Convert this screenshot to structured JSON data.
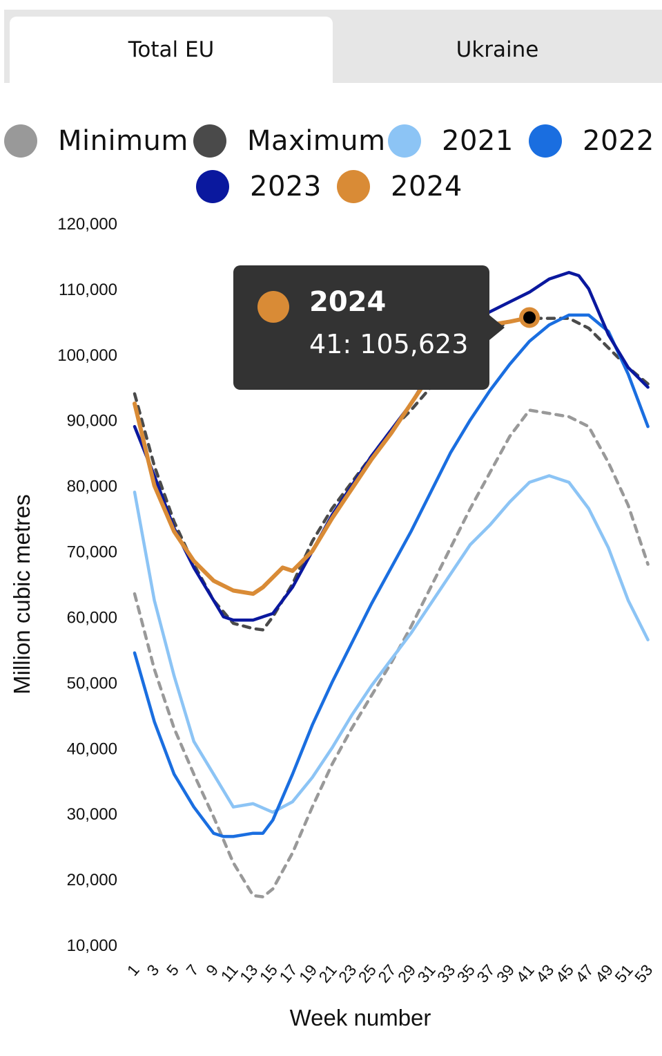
{
  "tabs": [
    {
      "label": "Total EU",
      "active": true
    },
    {
      "label": "Ukraine",
      "active": false
    }
  ],
  "tooltip": {
    "series": "2024",
    "value": "41: 105,623",
    "color": "#d98b36"
  },
  "chart_data": {
    "type": "line",
    "xlabel": "Week number",
    "ylabel": "Million cubic metres",
    "ylim": [
      10000,
      120000
    ],
    "yticks": [
      "120,000",
      "110,000",
      "100,000",
      "90,000",
      "80,000",
      "70,000",
      "60,000",
      "50,000",
      "40,000",
      "30,000",
      "20,000",
      "10,000"
    ],
    "xticks": [
      "1",
      "3",
      "5",
      "7",
      "9",
      "11",
      "13",
      "15",
      "17",
      "19",
      "21",
      "23",
      "25",
      "27",
      "29",
      "31",
      "33",
      "35",
      "37",
      "39",
      "41",
      "43",
      "45",
      "47",
      "49",
      "51",
      "53"
    ],
    "legend": {
      "placement": "top"
    },
    "series": [
      {
        "name": "Minimum",
        "color": "#999999",
        "dashed": true,
        "x": [
          1,
          3,
          5,
          7,
          9,
          11,
          13,
          14,
          15,
          17,
          19,
          21,
          23,
          25,
          27,
          29,
          31,
          33,
          35,
          37,
          39,
          41,
          43,
          45,
          47,
          49,
          51,
          53
        ],
        "values": [
          63500,
          52000,
          43000,
          36000,
          29500,
          22500,
          17500,
          17300,
          18500,
          24000,
          31000,
          37500,
          43000,
          48000,
          53000,
          58500,
          64500,
          70500,
          76500,
          82000,
          87500,
          91500,
          91000,
          90500,
          89000,
          83500,
          77000,
          68000
        ]
      },
      {
        "name": "Maximum",
        "color": "#4a4a4a",
        "dashed": true,
        "x": [
          1,
          3,
          5,
          7,
          9,
          11,
          13,
          14,
          15,
          17,
          19,
          21,
          23,
          25,
          27,
          29,
          31,
          33,
          35,
          37,
          39,
          41,
          43,
          45,
          47,
          49,
          51,
          53
        ],
        "values": [
          94000,
          83000,
          74500,
          68000,
          62500,
          59000,
          58200,
          58000,
          60000,
          65000,
          71500,
          76500,
          80500,
          84500,
          88500,
          91500,
          95000,
          98500,
          102000,
          103500,
          105000,
          105500,
          105500,
          105500,
          104000,
          101000,
          98000,
          95500
        ]
      },
      {
        "name": "2021",
        "color": "#8cc4f5",
        "dashed": false,
        "x": [
          1,
          3,
          5,
          7,
          9,
          11,
          13,
          15,
          17,
          19,
          21,
          23,
          25,
          27,
          29,
          31,
          33,
          35,
          37,
          39,
          41,
          43,
          45,
          47,
          49,
          51,
          53
        ],
        "values": [
          79000,
          62500,
          51000,
          41000,
          36000,
          31000,
          31500,
          30200,
          31800,
          35500,
          40000,
          45000,
          49500,
          53500,
          57500,
          62000,
          66500,
          71000,
          74000,
          77500,
          80500,
          81500,
          80500,
          76500,
          70500,
          62500,
          56500
        ]
      },
      {
        "name": "2022",
        "color": "#1a6ee0",
        "dashed": false,
        "x": [
          1,
          3,
          5,
          7,
          9,
          10,
          11,
          13,
          14,
          15,
          17,
          19,
          21,
          23,
          25,
          27,
          29,
          31,
          33,
          35,
          37,
          39,
          41,
          43,
          45,
          47,
          49,
          51,
          53
        ],
        "values": [
          54500,
          44000,
          36000,
          31000,
          27000,
          26500,
          26500,
          27000,
          27000,
          29000,
          36000,
          43500,
          50000,
          56000,
          62000,
          67500,
          73000,
          79000,
          85000,
          90000,
          94500,
          98500,
          102000,
          104500,
          106000,
          106000,
          103500,
          97000,
          89000
        ]
      },
      {
        "name": "2023",
        "color": "#0a189e",
        "dashed": false,
        "x": [
          1,
          3,
          5,
          7,
          9,
          10,
          11,
          13,
          15,
          17,
          19,
          21,
          23,
          25,
          27,
          29,
          31,
          33,
          35,
          37,
          39,
          41,
          43,
          45,
          46,
          47,
          49,
          51,
          53
        ],
        "values": [
          89000,
          81500,
          73500,
          67500,
          62500,
          60000,
          59500,
          59500,
          60500,
          64500,
          70000,
          75500,
          80000,
          84500,
          88500,
          92500,
          97500,
          101500,
          105000,
          106500,
          108000,
          109500,
          111500,
          112500,
          112000,
          110000,
          103000,
          98000,
          95000
        ]
      },
      {
        "name": "2024",
        "color": "#d98b36",
        "dashed": false,
        "x": [
          1,
          3,
          5,
          7,
          9,
          11,
          13,
          14,
          15,
          16,
          17,
          19,
          21,
          23,
          25,
          27,
          29,
          31,
          33,
          35,
          37,
          39,
          41
        ],
        "values": [
          92500,
          80000,
          73000,
          68500,
          65500,
          64000,
          63500,
          64500,
          66000,
          67500,
          67000,
          70000,
          75000,
          79500,
          84000,
          88000,
          92500,
          97000,
          101000,
          103000,
          104500,
          105000,
          105623
        ]
      }
    ]
  }
}
